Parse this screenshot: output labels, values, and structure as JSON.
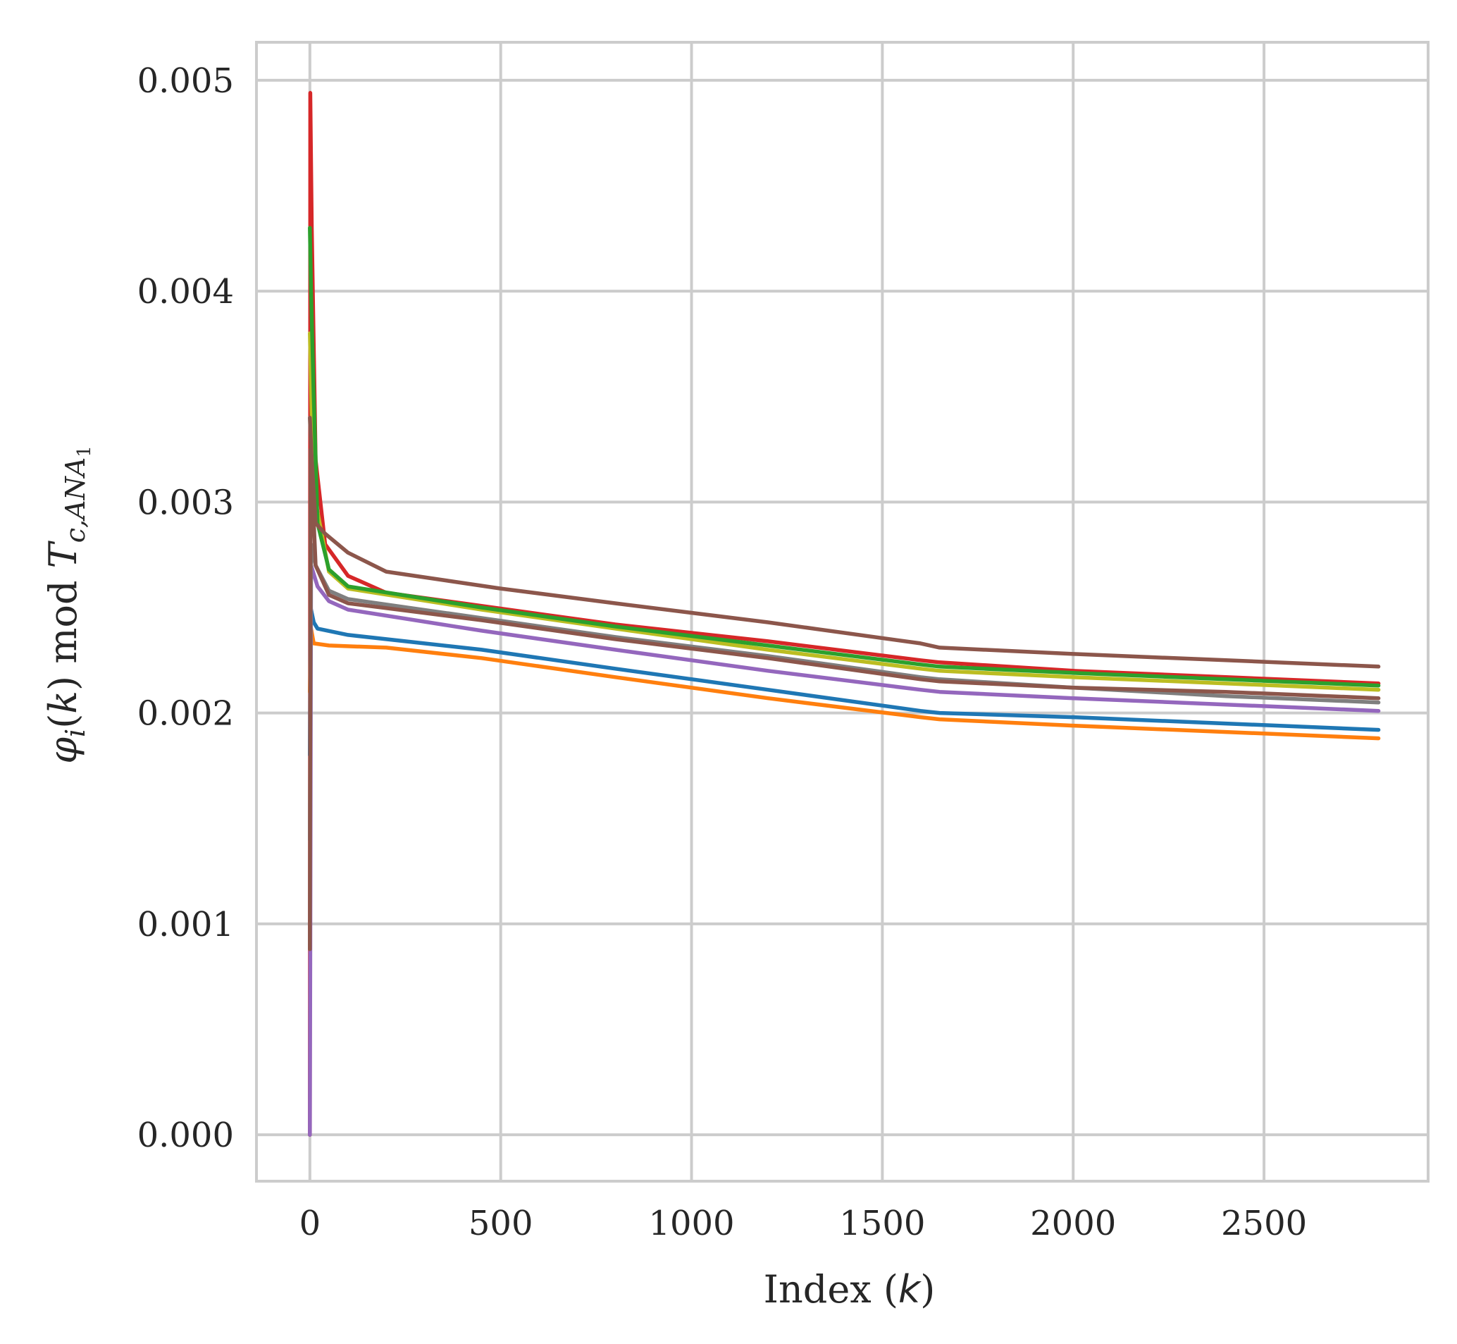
{
  "chart_data": {
    "type": "line",
    "xlabel": "Index (k)",
    "ylabel": "φi(k) mod Tc,ANA1",
    "xlim": [
      -140,
      2930
    ],
    "ylim": [
      -0.00022,
      0.00518
    ],
    "x_ticks": [
      0,
      500,
      1000,
      1500,
      2000,
      2500
    ],
    "x_tick_labels": [
      "0",
      "500",
      "1000",
      "1500",
      "2000",
      "2500"
    ],
    "y_ticks": [
      0.0,
      0.001,
      0.002,
      0.003,
      0.004,
      0.005
    ],
    "y_tick_labels": [
      "0.000",
      "0.001",
      "0.002",
      "0.003",
      "0.004",
      "0.005"
    ],
    "grid": true,
    "legend": "none",
    "series": [
      {
        "color": "#d62728",
        "points": [
          [
            0,
            0
          ],
          [
            1,
            0.00494
          ],
          [
            5,
            0.0043
          ],
          [
            15,
            0.0032
          ],
          [
            40,
            0.0028
          ],
          [
            100,
            0.00265
          ],
          [
            200,
            0.00257
          ],
          [
            400,
            0.00252
          ],
          [
            800,
            0.00242
          ],
          [
            1200,
            0.00234
          ],
          [
            1600,
            0.00225
          ],
          [
            1650,
            0.00224
          ],
          [
            2000,
            0.0022
          ],
          [
            2400,
            0.00217
          ],
          [
            2800,
            0.00214
          ]
        ]
      },
      {
        "color": "#1f77b4",
        "points": [
          [
            0,
            0.0018
          ],
          [
            2,
            0.0025
          ],
          [
            10,
            0.00243
          ],
          [
            20,
            0.0024
          ],
          [
            100,
            0.00237
          ],
          [
            450,
            0.0023
          ],
          [
            800,
            0.00221
          ],
          [
            1200,
            0.00211
          ],
          [
            1600,
            0.00201
          ],
          [
            1650,
            0.002
          ],
          [
            2000,
            0.00198
          ],
          [
            2400,
            0.00195
          ],
          [
            2800,
            0.00192
          ]
        ]
      },
      {
        "color": "#ff7f0e",
        "points": [
          [
            0,
            0.0021
          ],
          [
            3,
            0.0024
          ],
          [
            10,
            0.00233
          ],
          [
            50,
            0.00232
          ],
          [
            200,
            0.00231
          ],
          [
            450,
            0.00226
          ],
          [
            800,
            0.00217
          ],
          [
            1200,
            0.00207
          ],
          [
            1600,
            0.00198
          ],
          [
            1650,
            0.00197
          ],
          [
            2000,
            0.00194
          ],
          [
            2400,
            0.00191
          ],
          [
            2800,
            0.00188
          ]
        ]
      },
      {
        "color": "#9467bd",
        "points": [
          [
            0,
            0.0
          ],
          [
            1,
            0.00085
          ],
          [
            3,
            0.0027
          ],
          [
            20,
            0.0026
          ],
          [
            50,
            0.00253
          ],
          [
            100,
            0.00249
          ],
          [
            450,
            0.00239
          ],
          [
            800,
            0.0023
          ],
          [
            1200,
            0.0022
          ],
          [
            1600,
            0.00211
          ],
          [
            1650,
            0.0021
          ],
          [
            2000,
            0.00207
          ],
          [
            2400,
            0.00204
          ],
          [
            2800,
            0.00201
          ]
        ]
      },
      {
        "color": "#7f7f7f",
        "points": [
          [
            0,
            0.0014
          ],
          [
            3,
            0.0028
          ],
          [
            15,
            0.0027
          ],
          [
            50,
            0.00258
          ],
          [
            100,
            0.00254
          ],
          [
            450,
            0.00245
          ],
          [
            800,
            0.00236
          ],
          [
            1200,
            0.00227
          ],
          [
            1600,
            0.00217
          ],
          [
            1650,
            0.00216
          ],
          [
            2000,
            0.00212
          ],
          [
            2400,
            0.00208
          ],
          [
            2800,
            0.00205
          ]
        ]
      },
      {
        "color": "#8c564b",
        "points": [
          [
            0,
            0.00088
          ],
          [
            2,
            0.00325
          ],
          [
            15,
            0.0027
          ],
          [
            50,
            0.00256
          ],
          [
            100,
            0.00252
          ],
          [
            450,
            0.00244
          ],
          [
            800,
            0.00235
          ],
          [
            1200,
            0.00226
          ],
          [
            1600,
            0.00216
          ],
          [
            1650,
            0.00215
          ],
          [
            2000,
            0.00212
          ],
          [
            2400,
            0.0021
          ],
          [
            2800,
            0.00207
          ]
        ]
      },
      {
        "color": "#bcbd22",
        "points": [
          [
            0,
            0.0038
          ],
          [
            5,
            0.0034
          ],
          [
            15,
            0.003
          ],
          [
            50,
            0.00267
          ],
          [
            100,
            0.00259
          ],
          [
            450,
            0.00249
          ],
          [
            800,
            0.0024
          ],
          [
            1200,
            0.0023
          ],
          [
            1600,
            0.00221
          ],
          [
            1650,
            0.0022
          ],
          [
            2000,
            0.00217
          ],
          [
            2400,
            0.00214
          ],
          [
            2800,
            0.00211
          ]
        ]
      },
      {
        "color": "#2ca02c",
        "points": [
          [
            0,
            0.0043
          ],
          [
            3,
            0.004
          ],
          [
            10,
            0.0035
          ],
          [
            20,
            0.0029
          ],
          [
            50,
            0.00268
          ],
          [
            100,
            0.0026
          ],
          [
            450,
            0.0025
          ],
          [
            800,
            0.00241
          ],
          [
            1200,
            0.00232
          ],
          [
            1600,
            0.00223
          ],
          [
            1650,
            0.00222
          ],
          [
            2000,
            0.00219
          ],
          [
            2400,
            0.00216
          ],
          [
            2800,
            0.00213
          ]
        ]
      },
      {
        "color": "#8c564b",
        "points": [
          [
            0,
            0.0034
          ],
          [
            5,
            0.0032
          ],
          [
            15,
            0.0029
          ],
          [
            40,
            0.00285
          ],
          [
            100,
            0.00276
          ],
          [
            200,
            0.00267
          ],
          [
            500,
            0.00259
          ],
          [
            800,
            0.00252
          ],
          [
            1200,
            0.00243
          ],
          [
            1600,
            0.00233
          ],
          [
            1650,
            0.00231
          ],
          [
            2000,
            0.00228
          ],
          [
            2400,
            0.00225
          ],
          [
            2800,
            0.00222
          ]
        ]
      }
    ]
  }
}
